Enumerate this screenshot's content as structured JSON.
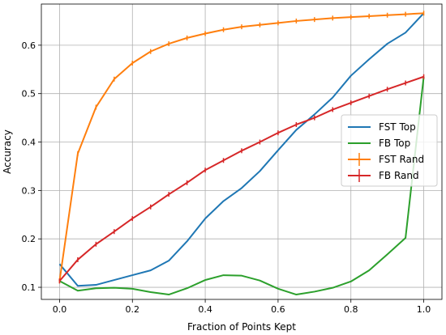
{
  "chart_data": {
    "type": "line",
    "title": "",
    "xlabel": "Fraction of Points Kept",
    "ylabel": "Accuracy",
    "xlim": [
      -0.05,
      1.05
    ],
    "ylim": [
      0.075,
      0.685
    ],
    "xticks": [
      0.0,
      0.2,
      0.4,
      0.6,
      0.8,
      1.0
    ],
    "xtick_labels": [
      "0.0",
      "0.2",
      "0.4",
      "0.6",
      "0.8",
      "1.0"
    ],
    "yticks": [
      0.1,
      0.2,
      0.3,
      0.4,
      0.5,
      0.6
    ],
    "ytick_labels": [
      "0.1",
      "0.2",
      "0.3",
      "0.4",
      "0.5",
      "0.6"
    ],
    "grid": true,
    "legend": "center-right",
    "x": [
      0.0,
      0.05,
      0.1,
      0.15,
      0.2,
      0.25,
      0.3,
      0.35,
      0.4,
      0.45,
      0.5,
      0.55,
      0.6,
      0.65,
      0.7,
      0.75,
      0.8,
      0.85,
      0.9,
      0.95,
      1.0
    ],
    "series": [
      {
        "name": "FST Top",
        "color": "#1f77b4",
        "marker": "none",
        "values": [
          0.148,
          0.103,
          0.105,
          0.115,
          0.125,
          0.135,
          0.155,
          0.195,
          0.242,
          0.278,
          0.305,
          0.34,
          0.383,
          0.425,
          0.457,
          0.492,
          0.537,
          0.571,
          0.603,
          0.626,
          0.666
        ]
      },
      {
        "name": "FB Top",
        "color": "#2ca02c",
        "marker": "none",
        "values": [
          0.113,
          0.093,
          0.098,
          0.099,
          0.097,
          0.09,
          0.085,
          0.098,
          0.115,
          0.125,
          0.124,
          0.114,
          0.097,
          0.085,
          0.091,
          0.099,
          0.112,
          0.135,
          0.168,
          0.202,
          0.535
        ]
      },
      {
        "name": "FST Rand",
        "color": "#ff7f0e",
        "marker": "errorbar",
        "values": [
          0.113,
          0.376,
          0.472,
          0.53,
          0.563,
          0.587,
          0.603,
          0.615,
          0.624,
          0.632,
          0.638,
          0.642,
          0.646,
          0.65,
          0.653,
          0.656,
          0.658,
          0.66,
          0.662,
          0.664,
          0.666
        ]
      },
      {
        "name": "FB Rand",
        "color": "#d62728",
        "marker": "errorbar",
        "values": [
          0.113,
          0.157,
          0.189,
          0.215,
          0.242,
          0.266,
          0.292,
          0.316,
          0.342,
          0.362,
          0.382,
          0.4,
          0.419,
          0.436,
          0.45,
          0.467,
          0.481,
          0.495,
          0.509,
          0.522,
          0.535
        ]
      }
    ]
  }
}
